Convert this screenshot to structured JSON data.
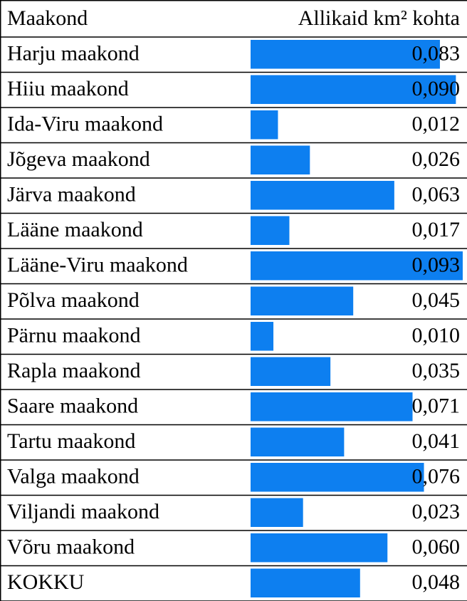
{
  "chart_data": {
    "type": "bar",
    "orientation": "horizontal",
    "headers": [
      "Maakond",
      "Allikaid km² kohta"
    ],
    "categories": [
      "Harju maakond",
      "Hiiu maakond",
      "Ida-Viru maakond",
      "Jõgeva maakond",
      "Järva maakond",
      "Lääne maakond",
      "Lääne-Viru maakond",
      "Põlva maakond",
      "Pärnu maakond",
      "Rapla maakond",
      "Saare maakond",
      "Tartu maakond",
      "Valga maakond",
      "Viljandi maakond",
      "Võru maakond",
      "KOKKU"
    ],
    "values": [
      0.083,
      0.09,
      0.012,
      0.026,
      0.063,
      0.017,
      0.093,
      0.045,
      0.01,
      0.035,
      0.071,
      0.041,
      0.076,
      0.023,
      0.06,
      0.048
    ],
    "value_labels": [
      "0,083",
      "0,090",
      "0,012",
      "0,026",
      "0,063",
      "0,017",
      "0,093",
      "0,045",
      "0,010",
      "0,035",
      "0,071",
      "0,041",
      "0,076",
      "0,023",
      "0,060",
      "0,048"
    ],
    "xlim": [
      0,
      0.093
    ],
    "color": "#0d7ff0"
  }
}
